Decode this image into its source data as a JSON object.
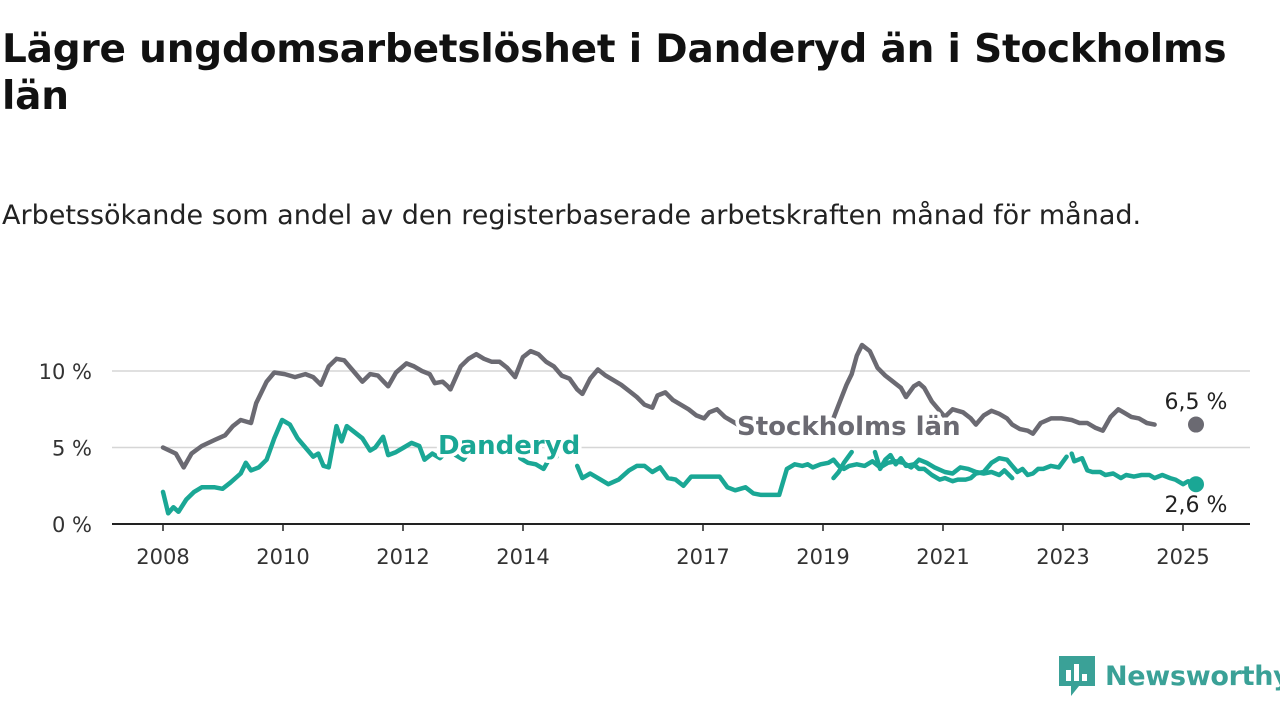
{
  "chart_data": {
    "type": "line",
    "title": "Lägre ungdomsarbetslöshet i Danderyd än i Stockholms län",
    "subtitle": "Arbetssökande som andel av den registerbaserade arbetskraften månad för månad.",
    "xlabel": "",
    "ylabel": "",
    "ylim": [
      0,
      12
    ],
    "y_ticks": [
      {
        "value": 0,
        "label": "0 %"
      },
      {
        "value": 5,
        "label": "5 %"
      },
      {
        "value": 10,
        "label": "10 %"
      }
    ],
    "x_ticks": [
      "2008",
      "2010",
      "2012",
      "2014",
      "2017",
      "2019",
      "2021",
      "2023",
      "2025"
    ],
    "x_range": [
      2007.9,
      2026.05
    ],
    "grid": true,
    "legend": "inline labels",
    "series": [
      {
        "name": "Stockholms län",
        "color": "#6b6a72",
        "label_position": [
          2019.8,
          6.5
        ],
        "end_label": "6,5 %",
        "points": [
          [
            2008.0,
            5.0
          ],
          [
            2008.25,
            4.6
          ],
          [
            2008.4,
            3.7
          ],
          [
            2008.55,
            4.6
          ],
          [
            2008.75,
            5.1
          ],
          [
            2009.0,
            5.5
          ],
          [
            2009.2,
            5.8
          ],
          [
            2009.35,
            6.4
          ],
          [
            2009.5,
            6.8
          ],
          [
            2009.7,
            6.6
          ],
          [
            2009.8,
            7.9
          ],
          [
            2010.0,
            9.3
          ],
          [
            2010.15,
            9.9
          ],
          [
            2010.35,
            9.8
          ],
          [
            2010.55,
            9.6
          ],
          [
            2010.75,
            9.8
          ],
          [
            2010.9,
            9.6
          ],
          [
            2011.05,
            9.1
          ],
          [
            2011.2,
            10.3
          ],
          [
            2011.35,
            10.8
          ],
          [
            2011.5,
            10.7
          ],
          [
            2011.7,
            9.9
          ],
          [
            2011.85,
            9.3
          ],
          [
            2012.0,
            9.8
          ],
          [
            2012.15,
            9.7
          ],
          [
            2012.35,
            9.0
          ],
          [
            2012.5,
            9.9
          ],
          [
            2012.7,
            10.5
          ],
          [
            2012.85,
            10.3
          ],
          [
            2013.0,
            10.0
          ],
          [
            2013.15,
            9.8
          ],
          [
            2013.25,
            9.2
          ],
          [
            2013.4,
            9.3
          ],
          [
            2013.5,
            9.0
          ],
          [
            2013.55,
            8.8
          ],
          [
            2013.75,
            10.3
          ],
          [
            2013.9,
            10.8
          ],
          [
            2014.05,
            11.1
          ],
          [
            2014.2,
            10.8
          ],
          [
            2014.35,
            10.6
          ],
          [
            2014.5,
            10.6
          ],
          [
            2014.65,
            10.2
          ],
          [
            2014.8,
            9.6
          ],
          [
            2014.95,
            10.9
          ],
          [
            2015.1,
            11.3
          ],
          [
            2015.25,
            11.1
          ],
          [
            2015.4,
            10.6
          ],
          [
            2015.55,
            10.3
          ],
          [
            2015.7,
            9.7
          ],
          [
            2015.85,
            9.5
          ],
          [
            2016.0,
            8.8
          ],
          [
            2016.1,
            8.5
          ],
          [
            2016.25,
            9.5
          ],
          [
            2016.4,
            10.1
          ],
          [
            2016.55,
            9.7
          ],
          [
            2016.7,
            9.4
          ],
          [
            2016.85,
            9.1
          ],
          [
            2017.0,
            8.7
          ],
          [
            2017.15,
            8.3
          ],
          [
            2017.3,
            7.8
          ],
          [
            2017.45,
            7.6
          ],
          [
            2017.55,
            8.4
          ],
          [
            2017.7,
            8.6
          ],
          [
            2017.85,
            8.1
          ],
          [
            2018.0,
            7.8
          ],
          [
            2018.15,
            7.5
          ],
          [
            2018.3,
            7.1
          ],
          [
            2018.45,
            6.9
          ],
          [
            2018.55,
            7.3
          ],
          [
            2018.7,
            7.5
          ],
          [
            2018.85,
            7.0
          ],
          [
            2019.0,
            6.7
          ],
          [
            2019.15,
            6.4
          ],
          [
            2019.3,
            6.2
          ],
          [
            2019.45,
            6.5
          ],
          [
            2019.6,
            7.0
          ]
        ],
        "points_2": [
          [
            2020.9,
            6.5
          ],
          [
            2021.05,
            7.8
          ],
          [
            2021.2,
            9.1
          ],
          [
            2021.3,
            9.8
          ],
          [
            2021.4,
            11.0
          ],
          [
            2021.5,
            11.7
          ],
          [
            2021.65,
            11.3
          ],
          [
            2021.8,
            10.2
          ],
          [
            2021.95,
            9.7
          ],
          [
            2022.1,
            9.3
          ],
          [
            2022.25,
            8.9
          ],
          [
            2022.35,
            8.3
          ],
          [
            2022.5,
            9.0
          ],
          [
            2022.6,
            9.2
          ],
          [
            2022.7,
            8.9
          ],
          [
            2022.85,
            8.0
          ],
          [
            2023.0,
            7.4
          ],
          [
            2023.1,
            7.0
          ],
          [
            2023.25,
            7.5
          ],
          [
            2023.45,
            7.3
          ],
          [
            2023.6,
            6.9
          ],
          [
            2023.7,
            6.5
          ],
          [
            2023.85,
            7.1
          ],
          [
            2024.0,
            7.4
          ],
          [
            2024.15,
            7.2
          ],
          [
            2024.3,
            6.9
          ],
          [
            2024.4,
            6.5
          ],
          [
            2024.55,
            6.2
          ],
          [
            2024.7,
            6.1
          ],
          [
            2024.8,
            5.9
          ],
          [
            2024.95,
            6.6
          ],
          [
            2025.15,
            6.9
          ],
          [
            2025.35,
            6.9
          ],
          [
            2025.55,
            6.8
          ],
          [
            2025.7,
            6.6
          ],
          [
            2025.85,
            6.6
          ],
          [
            2026.0,
            6.3
          ],
          [
            2026.15,
            6.1
          ],
          [
            2026.3,
            7.0
          ],
          [
            2026.45,
            7.5
          ],
          [
            2026.55,
            7.3
          ],
          [
            2026.7,
            7.0
          ],
          [
            2026.85,
            6.9
          ],
          [
            2027.0,
            6.6
          ],
          [
            2027.15,
            6.5
          ]
        ]
      },
      {
        "name": "Danderyd",
        "color": "#1aa795",
        "label_position": [
          2012.55,
          4.6
        ],
        "end_label": "2,6 %",
        "points": [
          [
            2008.0,
            2.1
          ],
          [
            2008.1,
            0.7
          ],
          [
            2008.2,
            1.1
          ],
          [
            2008.3,
            0.8
          ],
          [
            2008.45,
            1.6
          ],
          [
            2008.6,
            2.1
          ],
          [
            2008.75,
            2.4
          ],
          [
            2009.0,
            2.4
          ],
          [
            2009.15,
            2.3
          ],
          [
            2009.3,
            2.7
          ],
          [
            2009.5,
            3.3
          ],
          [
            2009.6,
            4.0
          ],
          [
            2009.7,
            3.5
          ],
          [
            2009.85,
            3.7
          ],
          [
            2010.0,
            4.2
          ],
          [
            2010.15,
            5.6
          ],
          [
            2010.3,
            6.8
          ],
          [
            2010.45,
            6.5
          ],
          [
            2010.6,
            5.6
          ],
          [
            2010.75,
            5.0
          ],
          [
            2010.9,
            4.4
          ],
          [
            2011.0,
            4.6
          ],
          [
            2011.1,
            3.8
          ],
          [
            2011.2,
            3.7
          ],
          [
            2011.35,
            6.4
          ],
          [
            2011.45,
            5.4
          ],
          [
            2011.55,
            6.4
          ],
          [
            2011.7,
            6.0
          ],
          [
            2011.85,
            5.6
          ],
          [
            2012.0,
            4.8
          ],
          [
            2012.1,
            5.0
          ],
          [
            2012.25,
            5.7
          ],
          [
            2012.35,
            4.5
          ],
          [
            2012.5,
            4.7
          ],
          [
            2012.65,
            5.0
          ],
          [
            2012.8,
            5.3
          ],
          [
            2012.95,
            5.1
          ],
          [
            2013.05,
            4.2
          ],
          [
            2013.2,
            4.6
          ],
          [
            2013.35,
            4.3
          ],
          [
            2013.5,
            4.8
          ],
          [
            2013.65,
            4.5
          ],
          [
            2013.8,
            4.2
          ],
          [
            2013.95,
            4.9
          ],
          [
            2014.1,
            5.1
          ]
        ],
        "points_2": [
          [
            2014.9,
            4.3
          ],
          [
            2015.05,
            4.0
          ],
          [
            2015.2,
            3.9
          ],
          [
            2015.35,
            3.6
          ],
          [
            2015.45,
            4.2
          ],
          [
            2015.6,
            4.4
          ]
        ],
        "points_3": [
          [
            2016.0,
            3.8
          ],
          [
            2016.1,
            3.0
          ],
          [
            2016.25,
            3.3
          ],
          [
            2016.45,
            2.9
          ],
          [
            2016.6,
            2.6
          ],
          [
            2016.8,
            2.9
          ],
          [
            2017.0,
            3.5
          ],
          [
            2017.15,
            3.8
          ],
          [
            2017.3,
            3.8
          ],
          [
            2017.45,
            3.4
          ],
          [
            2017.6,
            3.7
          ],
          [
            2017.75,
            3.0
          ],
          [
            2017.9,
            2.9
          ],
          [
            2018.05,
            2.5
          ],
          [
            2018.2,
            3.1
          ],
          [
            2018.5,
            3.1
          ],
          [
            2018.75,
            3.1
          ],
          [
            2018.9,
            2.4
          ],
          [
            2019.05,
            2.2
          ],
          [
            2019.25,
            2.4
          ],
          [
            2019.4,
            2.0
          ],
          [
            2019.55,
            1.9
          ],
          [
            2019.8,
            1.9
          ],
          [
            2019.9,
            1.9
          ],
          [
            2020.05,
            3.6
          ],
          [
            2020.2,
            3.9
          ],
          [
            2020.35,
            3.8
          ],
          [
            2020.45,
            3.9
          ],
          [
            2020.55,
            3.7
          ],
          [
            2020.7,
            3.9
          ],
          [
            2020.85,
            4.0
          ],
          [
            2020.95,
            4.2
          ],
          [
            2021.05,
            3.8
          ],
          [
            2021.15,
            3.6
          ],
          [
            2021.25,
            3.8
          ],
          [
            2021.4,
            3.9
          ],
          [
            2021.55,
            3.8
          ],
          [
            2021.7,
            4.1
          ],
          [
            2021.85,
            3.7
          ],
          [
            2022.0,
            4.0
          ],
          [
            2022.15,
            4.1
          ],
          [
            2022.3,
            4.0
          ],
          [
            2022.45,
            3.7
          ],
          [
            2022.6,
            4.2
          ],
          [
            2022.75,
            4.0
          ],
          [
            2022.9,
            3.7
          ],
          [
            2023.1,
            3.4
          ],
          [
            2023.25,
            3.3
          ],
          [
            2023.4,
            3.7
          ],
          [
            2023.55,
            3.6
          ],
          [
            2023.7,
            3.4
          ],
          [
            2023.85,
            3.3
          ],
          [
            2024.0,
            3.4
          ],
          [
            2024.15,
            3.2
          ],
          [
            2024.25,
            3.5
          ],
          [
            2024.4,
            3.0
          ]
        ],
        "points_4": [
          [
            2020.95,
            3.0
          ],
          [
            2021.05,
            3.4
          ],
          [
            2021.15,
            4.0
          ],
          [
            2021.3,
            4.7
          ]
        ],
        "points_5": [
          [
            2021.75,
            4.7
          ],
          [
            2021.85,
            3.6
          ],
          [
            2021.95,
            4.2
          ],
          [
            2022.05,
            4.5
          ],
          [
            2022.15,
            3.9
          ],
          [
            2022.25,
            4.3
          ],
          [
            2022.35,
            3.8
          ],
          [
            2022.5,
            3.9
          ],
          [
            2022.6,
            3.6
          ],
          [
            2022.7,
            3.6
          ],
          [
            2022.85,
            3.2
          ],
          [
            2023.0,
            2.9
          ],
          [
            2023.1,
            3.0
          ],
          [
            2023.25,
            2.8
          ],
          [
            2023.35,
            2.9
          ],
          [
            2023.5,
            2.9
          ],
          [
            2023.6,
            3.0
          ],
          [
            2023.7,
            3.3
          ],
          [
            2023.85,
            3.4
          ],
          [
            2024.0,
            4.0
          ],
          [
            2024.15,
            4.3
          ],
          [
            2024.3,
            4.2
          ],
          [
            2024.4,
            3.8
          ],
          [
            2024.5,
            3.4
          ],
          [
            2024.6,
            3.6
          ],
          [
            2024.7,
            3.2
          ],
          [
            2024.8,
            3.3
          ],
          [
            2024.9,
            3.6
          ],
          [
            2025.0,
            3.6
          ],
          [
            2025.15,
            3.8
          ],
          [
            2025.3,
            3.7
          ],
          [
            2025.45,
            4.4
          ]
        ],
        "points_6": [
          [
            2025.55,
            4.6
          ],
          [
            2025.6,
            4.1
          ],
          [
            2025.75,
            4.3
          ],
          [
            2025.85,
            3.5
          ],
          [
            2025.95,
            3.4
          ],
          [
            2026.1,
            3.4
          ],
          [
            2026.2,
            3.2
          ],
          [
            2026.35,
            3.3
          ],
          [
            2026.5,
            3.0
          ],
          [
            2026.6,
            3.2
          ],
          [
            2026.75,
            3.1
          ],
          [
            2026.9,
            3.2
          ],
          [
            2027.05,
            3.2
          ],
          [
            2027.15,
            3.0
          ],
          [
            2027.3,
            3.2
          ],
          [
            2027.45,
            3.0
          ],
          [
            2027.55,
            2.9
          ],
          [
            2027.7,
            2.6
          ],
          [
            2027.8,
            2.8
          ],
          [
            2027.95,
            2.6
          ]
        ]
      }
    ]
  },
  "brand": {
    "name": "Newsworthy",
    "icon": "newsworthy-logo-icon",
    "color": "#3aa197"
  }
}
